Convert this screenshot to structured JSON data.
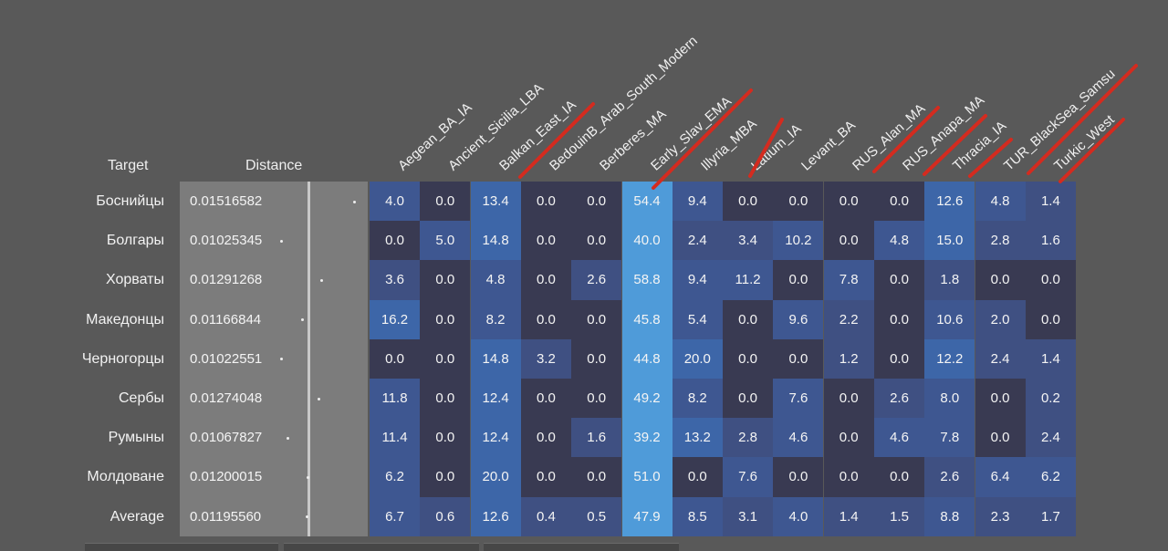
{
  "chart_data": {
    "type": "heatmap",
    "header": {
      "target_label": "Target",
      "distance_label": "Distance"
    },
    "columns": [
      "Aegean_BA_IA",
      "Ancient_Sicilia_LBA",
      "Balkan_East_IA",
      "BedouinB_Arab_South_Modern",
      "Berberes_MA",
      "Early_Slav_EMA",
      "Illyria_MBA",
      "Latium_IA",
      "Levant_BA",
      "RUS_Alan_MA",
      "RUS_Anapa_MA",
      "Thracia_IA",
      "TUR_BlackSea_Samsu",
      "Turkic_West"
    ],
    "rows": [
      {
        "target": "Боснийцы",
        "distance": "0.01516582",
        "values": [
          "4.0",
          "0.0",
          "13.4",
          "0.0",
          "0.0",
          "54.4",
          "9.4",
          "0.0",
          "0.0",
          "0.0",
          "0.0",
          "12.6",
          "4.8",
          "1.4"
        ]
      },
      {
        "target": "Болгары",
        "distance": "0.01025345",
        "values": [
          "0.0",
          "5.0",
          "14.8",
          "0.0",
          "0.0",
          "40.0",
          "2.4",
          "3.4",
          "10.2",
          "0.0",
          "4.8",
          "15.0",
          "2.8",
          "1.6"
        ]
      },
      {
        "target": "Хорваты",
        "distance": "0.01291268",
        "values": [
          "3.6",
          "0.0",
          "4.8",
          "0.0",
          "2.6",
          "58.8",
          "9.4",
          "11.2",
          "0.0",
          "7.8",
          "0.0",
          "1.8",
          "0.0",
          "0.0"
        ]
      },
      {
        "target": "Македонцы",
        "distance": "0.01166844",
        "values": [
          "16.2",
          "0.0",
          "8.2",
          "0.0",
          "0.0",
          "45.8",
          "5.4",
          "0.0",
          "9.6",
          "2.2",
          "0.0",
          "10.6",
          "2.0",
          "0.0"
        ]
      },
      {
        "target": "Черногорцы",
        "distance": "0.01022551",
        "values": [
          "0.0",
          "0.0",
          "14.8",
          "3.2",
          "0.0",
          "44.8",
          "20.0",
          "0.0",
          "0.0",
          "1.2",
          "0.0",
          "12.2",
          "2.4",
          "1.4"
        ]
      },
      {
        "target": "Сербы",
        "distance": "0.01274048",
        "values": [
          "11.8",
          "0.0",
          "12.4",
          "0.0",
          "0.0",
          "49.2",
          "8.2",
          "0.0",
          "7.6",
          "0.0",
          "2.6",
          "8.0",
          "0.0",
          "0.2"
        ]
      },
      {
        "target": "Румыны",
        "distance": "0.01067827",
        "values": [
          "11.4",
          "0.0",
          "12.4",
          "0.0",
          "1.6",
          "39.2",
          "13.2",
          "2.8",
          "4.6",
          "0.0",
          "4.6",
          "7.8",
          "0.0",
          "2.4"
        ]
      },
      {
        "target": "Молдоване",
        "distance": "0.01200015",
        "values": [
          "6.2",
          "0.0",
          "20.0",
          "0.0",
          "0.0",
          "51.0",
          "0.0",
          "7.6",
          "0.0",
          "0.0",
          "0.0",
          "2.6",
          "6.4",
          "6.2"
        ]
      },
      {
        "target": "Average",
        "distance": "0.01195560",
        "values": [
          "6.7",
          "0.6",
          "12.6",
          "0.4",
          "0.5",
          "47.9",
          "8.5",
          "3.1",
          "4.0",
          "1.4",
          "1.5",
          "8.8",
          "2.3",
          "1.7"
        ]
      }
    ],
    "colors": {
      "zero": "#393a52",
      "low": "#3f5082",
      "mid": "#3e5791",
      "high": "#3d66a8",
      "peak": "#4f9bd9",
      "distance_panel": "#7c7c7c",
      "red_mark": "#d42b1f"
    }
  }
}
